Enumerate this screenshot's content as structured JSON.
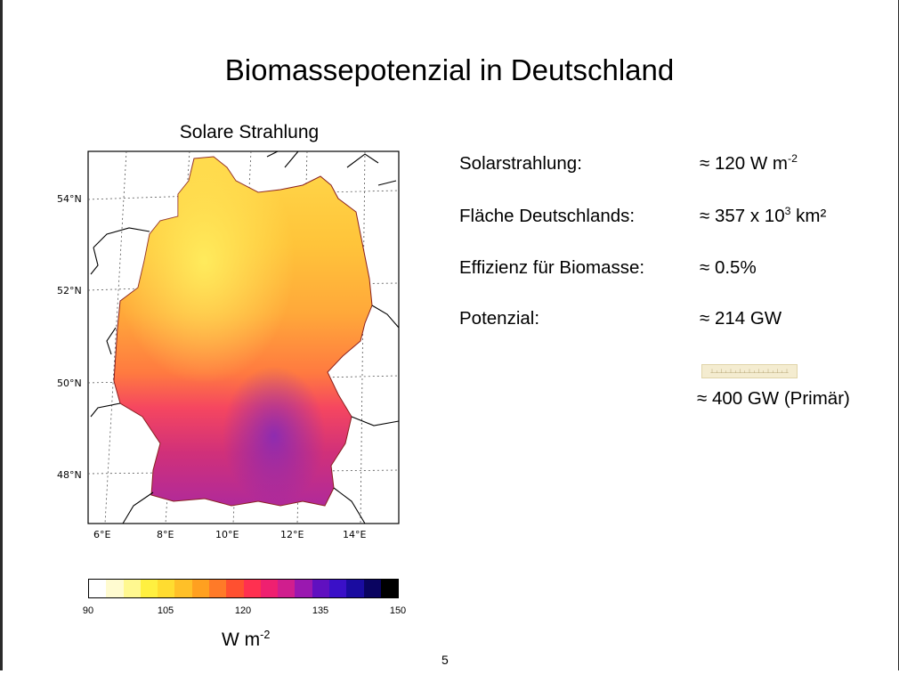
{
  "slide": {
    "title": "Biomassepotenzial in Deutschland",
    "page_number": "5"
  },
  "map": {
    "title": "Solare Strahlung",
    "lat_labels": [
      "54°N",
      "52°N",
      "50°N",
      "48°N"
    ],
    "lon_labels": [
      "6°E",
      "8°E",
      "10°E",
      "12°E",
      "14°E"
    ]
  },
  "colorbar": {
    "ticks": [
      "90",
      "105",
      "120",
      "135",
      "150"
    ],
    "unit_main": "W m",
    "unit_exp": "-2",
    "colors": [
      "#ffffff",
      "#fffbd0",
      "#fff890",
      "#fff040",
      "#ffdc30",
      "#ffc028",
      "#ffa020",
      "#ff7a28",
      "#ff5030",
      "#ff3050",
      "#ef2070",
      "#d01e8e",
      "#9a18b0",
      "#6010c0",
      "#3a10c8",
      "#1a0ca0",
      "#0a0460",
      "#000000"
    ]
  },
  "facts": [
    {
      "label": "Solarstrahlung:",
      "value": "≈ 120 W m",
      "exp": "-2"
    },
    {
      "label": "Fläche Deutschlands:",
      "value": "≈ 357 x 10",
      "exp": "3",
      "suffix": " km²"
    },
    {
      "label": "Effizienz für Biomasse:",
      "value": "≈ 0.5%"
    },
    {
      "label": "Potenzial:",
      "value": "≈ 214 GW"
    }
  ],
  "primary": "≈ 400 GW (Primär)"
}
